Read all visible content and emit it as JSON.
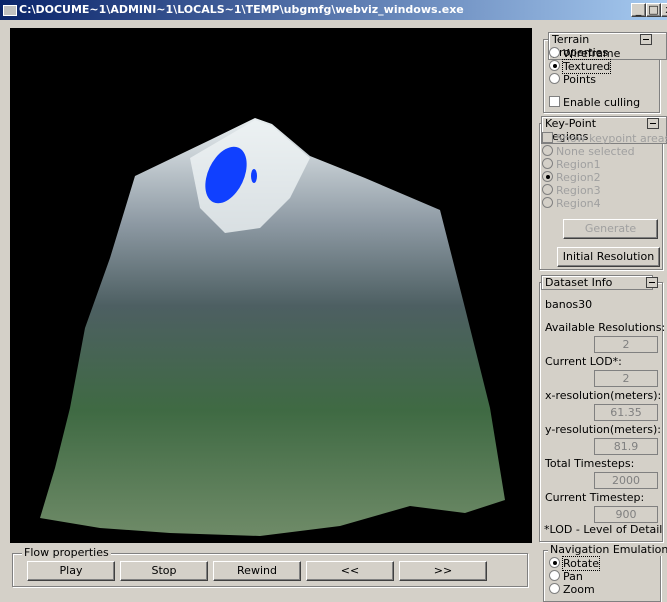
{
  "window": {
    "title": "C:\\DOCUME~1\\ADMINI~1\\LOCALS~1\\TEMP\\ubgmfg\\webviz_windows.exe"
  },
  "terrain_properties": {
    "title": "Terrain properties",
    "options": [
      "Wireframe",
      "Textured",
      "Points"
    ],
    "culling": "Enable culling"
  },
  "key_point_regions": {
    "title": "Key-Point Regions",
    "show": "Show keypoint areas",
    "options": [
      "None selected",
      "Region1",
      "Region2",
      "Region3",
      "Region4"
    ],
    "generate": "Generate",
    "initial": "Initial Resolution"
  },
  "dataset_info": {
    "title": "Dataset Info",
    "name": "banos30",
    "fields": [
      {
        "label": "Available Resolutions:",
        "value": "2"
      },
      {
        "label": "Current LOD*:",
        "value": "2"
      },
      {
        "label": "x-resolution(meters):",
        "value": "61.35"
      },
      {
        "label": "y-resolution(meters):",
        "value": "81.9"
      },
      {
        "label": "Total Timesteps:",
        "value": "2000"
      },
      {
        "label": "Current Timestep:",
        "value": "900"
      }
    ],
    "note": "*LOD - Level of Detail"
  },
  "flow_properties": {
    "title": "Flow properties",
    "buttons": [
      "Play",
      "Stop",
      "Rewind",
      "<<",
      ">>"
    ]
  },
  "navigation": {
    "title": "Navigation Emulation",
    "options": [
      "Rotate",
      "Pan",
      "Zoom"
    ]
  }
}
